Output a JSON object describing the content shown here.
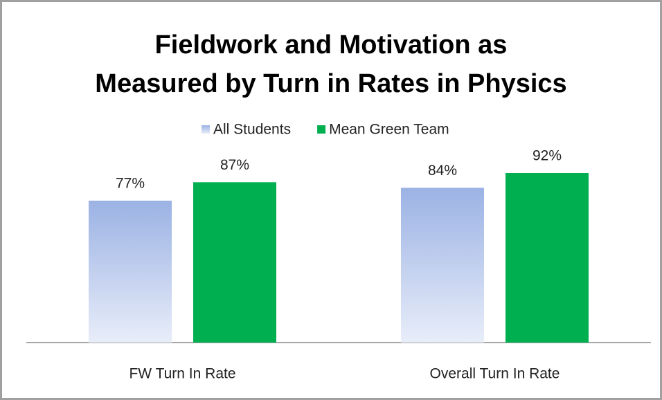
{
  "chart_data": {
    "type": "bar",
    "title": "Fieldwork and Motivation as\nMeasured by Turn in Rates in Physics",
    "categories": [
      "FW Turn In Rate",
      "Overall Turn In Rate"
    ],
    "series": [
      {
        "name": "All Students",
        "color": "#9bb2e4",
        "values": [
          77,
          84
        ],
        "value_labels": [
          "77%",
          "84%"
        ]
      },
      {
        "name": "Mean Green Team",
        "color": "#00b050",
        "values": [
          87,
          92
        ],
        "value_labels": [
          "87%",
          "92%"
        ]
      }
    ],
    "legend": "top"
  }
}
